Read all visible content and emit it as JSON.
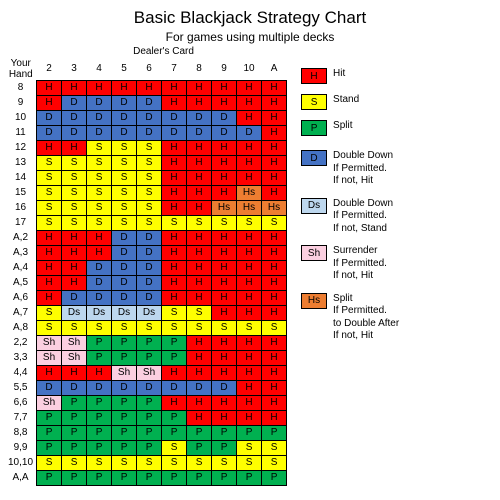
{
  "title": "Basic Blackjack Strategy Chart",
  "subtitle": "For games using multiple decks",
  "your_hand": "Your\nHand",
  "dealer_card": "Dealer's Card",
  "colors": {
    "H": "#ff0000",
    "S": "#ffff00",
    "P": "#00b050",
    "D": "#4472c4",
    "Ds": "#bdd7ee",
    "Sh": "#fbcfe0",
    "Hs": "#ed7d31",
    "none": "#ffffff"
  },
  "columns": [
    "2",
    "3",
    "4",
    "5",
    "6",
    "7",
    "8",
    "9",
    "10",
    "A"
  ],
  "rows": [
    {
      "l": "8",
      "c": [
        "H",
        "H",
        "H",
        "H",
        "H",
        "H",
        "H",
        "H",
        "H",
        "H"
      ]
    },
    {
      "l": "9",
      "c": [
        "H",
        "D",
        "D",
        "D",
        "D",
        "H",
        "H",
        "H",
        "H",
        "H"
      ]
    },
    {
      "l": "10",
      "c": [
        "D",
        "D",
        "D",
        "D",
        "D",
        "D",
        "D",
        "D",
        "H",
        "H"
      ]
    },
    {
      "l": "11",
      "c": [
        "D",
        "D",
        "D",
        "D",
        "D",
        "D",
        "D",
        "D",
        "D",
        "H"
      ]
    },
    {
      "l": "12",
      "c": [
        "H",
        "H",
        "S",
        "S",
        "S",
        "H",
        "H",
        "H",
        "H",
        "H"
      ]
    },
    {
      "l": "13",
      "c": [
        "S",
        "S",
        "S",
        "S",
        "S",
        "H",
        "H",
        "H",
        "H",
        "H"
      ]
    },
    {
      "l": "14",
      "c": [
        "S",
        "S",
        "S",
        "S",
        "S",
        "H",
        "H",
        "H",
        "H",
        "H"
      ]
    },
    {
      "l": "15",
      "c": [
        "S",
        "S",
        "S",
        "S",
        "S",
        "H",
        "H",
        "H",
        "Hs",
        "H"
      ]
    },
    {
      "l": "16",
      "c": [
        "S",
        "S",
        "S",
        "S",
        "S",
        "H",
        "H",
        "Hs",
        "Hs",
        "Hs"
      ]
    },
    {
      "l": "17",
      "c": [
        "S",
        "S",
        "S",
        "S",
        "S",
        "S",
        "S",
        "S",
        "S",
        "S"
      ]
    },
    {
      "l": "A,2",
      "c": [
        "H",
        "H",
        "H",
        "D",
        "D",
        "H",
        "H",
        "H",
        "H",
        "H"
      ]
    },
    {
      "l": "A,3",
      "c": [
        "H",
        "H",
        "H",
        "D",
        "D",
        "H",
        "H",
        "H",
        "H",
        "H"
      ]
    },
    {
      "l": "A,4",
      "c": [
        "H",
        "H",
        "D",
        "D",
        "D",
        "H",
        "H",
        "H",
        "H",
        "H"
      ]
    },
    {
      "l": "A,5",
      "c": [
        "H",
        "H",
        "D",
        "D",
        "D",
        "H",
        "H",
        "H",
        "H",
        "H"
      ]
    },
    {
      "l": "A,6",
      "c": [
        "H",
        "D",
        "D",
        "D",
        "D",
        "H",
        "H",
        "H",
        "H",
        "H"
      ]
    },
    {
      "l": "A,7",
      "c": [
        "S",
        "Ds",
        "Ds",
        "Ds",
        "Ds",
        "S",
        "S",
        "H",
        "H",
        "H"
      ]
    },
    {
      "l": "A,8",
      "c": [
        "S",
        "S",
        "S",
        "S",
        "S",
        "S",
        "S",
        "S",
        "S",
        "S"
      ]
    },
    {
      "l": "2,2",
      "c": [
        "Sh",
        "Sh",
        "P",
        "P",
        "P",
        "P",
        "H",
        "H",
        "H",
        "H"
      ]
    },
    {
      "l": "3,3",
      "c": [
        "Sh",
        "Sh",
        "P",
        "P",
        "P",
        "P",
        "H",
        "H",
        "H",
        "H"
      ]
    },
    {
      "l": "4,4",
      "c": [
        "H",
        "H",
        "H",
        "Sh",
        "Sh",
        "H",
        "H",
        "H",
        "H",
        "H"
      ]
    },
    {
      "l": "5,5",
      "c": [
        "D",
        "D",
        "D",
        "D",
        "D",
        "D",
        "D",
        "D",
        "H",
        "H"
      ]
    },
    {
      "l": "6,6",
      "c": [
        "Sh",
        "P",
        "P",
        "P",
        "P",
        "H",
        "H",
        "H",
        "H",
        "H"
      ]
    },
    {
      "l": "7,7",
      "c": [
        "P",
        "P",
        "P",
        "P",
        "P",
        "P",
        "H",
        "H",
        "H",
        "H"
      ]
    },
    {
      "l": "8,8",
      "c": [
        "P",
        "P",
        "P",
        "P",
        "P",
        "P",
        "P",
        "P",
        "P",
        "P"
      ]
    },
    {
      "l": "9,9",
      "c": [
        "P",
        "P",
        "P",
        "P",
        "P",
        "S",
        "P",
        "P",
        "S",
        "S"
      ]
    },
    {
      "l": "10,10",
      "c": [
        "S",
        "S",
        "S",
        "S",
        "S",
        "S",
        "S",
        "S",
        "S",
        "S"
      ]
    },
    {
      "l": "A,A",
      "c": [
        "P",
        "P",
        "P",
        "P",
        "P",
        "P",
        "P",
        "P",
        "P",
        "P"
      ]
    }
  ],
  "legend": [
    {
      "k": "H",
      "t": "Hit"
    },
    {
      "k": "S",
      "t": "Stand"
    },
    {
      "k": "P",
      "t": "Split"
    },
    {
      "k": "D",
      "t": "Double Down\nIf Permitted.\nIf not, Hit"
    },
    {
      "k": "Ds",
      "t": "Double Down\nIf Permitted.\nIf not, Stand"
    },
    {
      "k": "Sh",
      "t": "Surrender\nIf Permitted.\nIf not, Hit"
    },
    {
      "k": "Hs",
      "t": "Split\nIf Permitted.\nto Double After\nIf not, Hit"
    }
  ]
}
